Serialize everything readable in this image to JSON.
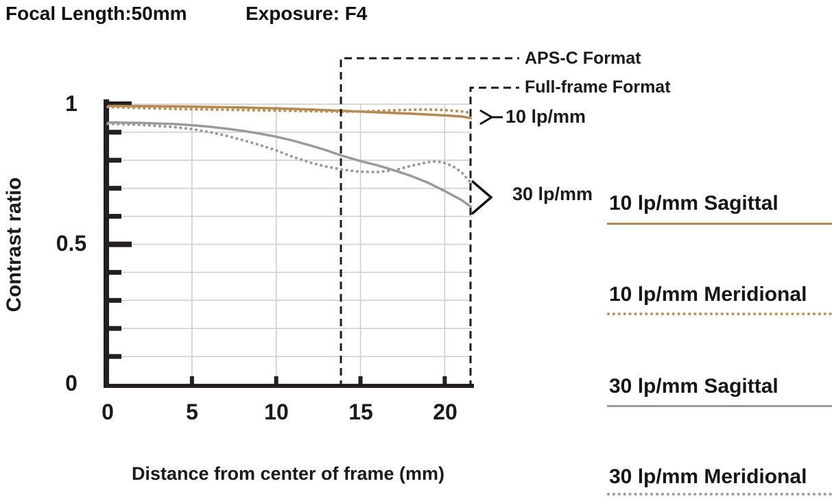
{
  "header": {
    "focal_length": "Focal Length:50mm",
    "exposure": "Exposure: F4"
  },
  "colors": {
    "tan": "#b7874a",
    "tan_dotted": "#c08d52",
    "gray": "#9a9a9a",
    "axis": "#231f20",
    "grid": "#cccccc",
    "annotation": "#1a1a1a"
  },
  "chart_data": {
    "type": "line",
    "xlabel": "Distance from center of frame (mm)",
    "ylabel": "Contrast ratio",
    "xlim": [
      0,
      21.7
    ],
    "ylim": [
      0,
      1
    ],
    "x_ticks": [
      0,
      5,
      10,
      15,
      20
    ],
    "x_tick_labels": [
      "0",
      "5",
      "10",
      "15",
      "20"
    ],
    "y_ticks": [
      1,
      0.5,
      0
    ],
    "y_tick_labels": [
      "1",
      "0.5",
      "0"
    ],
    "y_minor_step": 0.1,
    "grid": true,
    "legend_position": "right",
    "series": [
      {
        "name": "10 lp/mm Sagittal",
        "style": "solid",
        "color": "#b7874a",
        "points": [
          [
            0,
            0.994
          ],
          [
            2,
            0.993
          ],
          [
            4,
            0.992
          ],
          [
            6,
            0.99
          ],
          [
            8,
            0.988
          ],
          [
            10,
            0.985
          ],
          [
            12,
            0.981
          ],
          [
            14,
            0.976
          ],
          [
            16,
            0.971
          ],
          [
            18,
            0.966
          ],
          [
            20,
            0.96
          ],
          [
            21,
            0.956
          ],
          [
            21.6,
            0.95
          ]
        ]
      },
      {
        "name": "10 lp/mm Meridional",
        "style": "dotted",
        "color": "#c08d52",
        "points": [
          [
            0,
            0.99
          ],
          [
            2,
            0.986
          ],
          [
            4,
            0.983
          ],
          [
            6,
            0.981
          ],
          [
            8,
            0.979
          ],
          [
            10,
            0.977
          ],
          [
            12,
            0.975
          ],
          [
            13.8,
            0.973
          ],
          [
            15,
            0.974
          ],
          [
            16,
            0.976
          ],
          [
            17,
            0.978
          ],
          [
            18,
            0.98
          ],
          [
            19,
            0.981
          ],
          [
            20,
            0.979
          ],
          [
            21,
            0.974
          ],
          [
            21.6,
            0.969
          ]
        ]
      },
      {
        "name": "30 lp/mm Sagittal",
        "style": "solid",
        "color": "#9a9a9a",
        "points": [
          [
            0,
            0.935
          ],
          [
            2,
            0.933
          ],
          [
            4,
            0.929
          ],
          [
            5,
            0.925
          ],
          [
            6,
            0.92
          ],
          [
            7,
            0.913
          ],
          [
            8,
            0.905
          ],
          [
            9,
            0.895
          ],
          [
            10,
            0.884
          ],
          [
            11,
            0.87
          ],
          [
            12,
            0.853
          ],
          [
            13,
            0.835
          ],
          [
            13.8,
            0.818
          ],
          [
            15,
            0.797
          ],
          [
            16,
            0.782
          ],
          [
            17,
            0.764
          ],
          [
            18,
            0.744
          ],
          [
            19,
            0.72
          ],
          [
            20,
            0.69
          ],
          [
            21,
            0.658
          ],
          [
            21.6,
            0.632
          ]
        ]
      },
      {
        "name": "30 lp/mm Meridional",
        "style": "dotted",
        "color": "#9a9a9a",
        "points": [
          [
            0,
            0.93
          ],
          [
            2,
            0.926
          ],
          [
            4,
            0.918
          ],
          [
            5,
            0.911
          ],
          [
            6,
            0.901
          ],
          [
            7,
            0.888
          ],
          [
            8,
            0.872
          ],
          [
            9,
            0.855
          ],
          [
            10,
            0.835
          ],
          [
            11,
            0.812
          ],
          [
            12,
            0.792
          ],
          [
            13,
            0.777
          ],
          [
            13.8,
            0.768
          ],
          [
            14.5,
            0.762
          ],
          [
            15,
            0.759
          ],
          [
            16,
            0.758
          ],
          [
            17,
            0.764
          ],
          [
            18,
            0.78
          ],
          [
            19,
            0.793
          ],
          [
            19.5,
            0.796
          ],
          [
            20,
            0.79
          ],
          [
            20.5,
            0.778
          ],
          [
            21,
            0.757
          ],
          [
            21.6,
            0.716
          ]
        ]
      }
    ],
    "annotations": {
      "aps_c": {
        "label": "APS-C Format",
        "x_mm": 13.84
      },
      "full_frame": {
        "label": "Full-frame Format",
        "x_mm": 21.53
      },
      "group_10": {
        "label": "10 lp/mm"
      },
      "group_30": {
        "label": "30 lp/mm"
      }
    }
  },
  "legend": {
    "items": [
      {
        "label": "10 lp/mm Sagittal",
        "style": "solid",
        "color": "#b7874a"
      },
      {
        "label": "10 lp/mm Meridional",
        "style": "dotted",
        "color": "#c08d52"
      },
      {
        "label": "30 lp/mm Sagittal",
        "style": "solid",
        "color": "#9a9a9a"
      },
      {
        "label": "30 lp/mm Meridional",
        "style": "dotted",
        "color": "#9a9a9a"
      }
    ]
  }
}
